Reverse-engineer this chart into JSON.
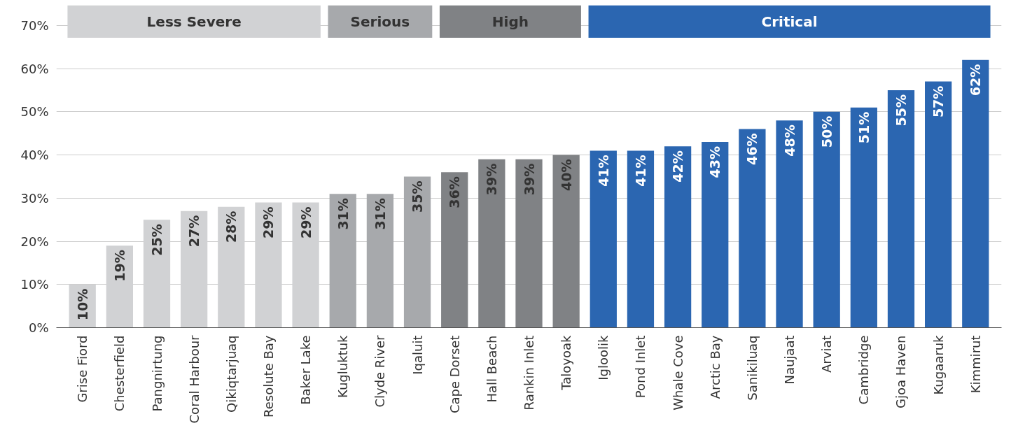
{
  "chart_data": {
    "type": "bar",
    "categories": [
      "Grise Fiord",
      "Chesterfield",
      "Pangnirtung",
      "Coral Harbour",
      "Qikiqtarjuaq",
      "Resolute Bay",
      "Baker Lake",
      "Kugluktuk",
      "Clyde River",
      "Iqaluit",
      "Cape Dorset",
      "Hall Beach",
      "Rankin Inlet",
      "Taloyoak",
      "Igloolik",
      "Pond Inlet",
      "Whale Cove",
      "Arctic Bay",
      "Sanikiluaq",
      "Naujaat",
      "Arviat",
      "Cambridge",
      "Gjoa Haven",
      "Kugaaruk",
      "Kimmirut"
    ],
    "series": [
      {
        "name": "Less Severe",
        "color": "#d1d2d4",
        "values": [
          10,
          19,
          25,
          27,
          28,
          29,
          29,
          null,
          null,
          null,
          null,
          null,
          null,
          null,
          null,
          null,
          null,
          null,
          null,
          null,
          null,
          null,
          null,
          null,
          null
        ],
        "value_labels": [
          "10%",
          "19%",
          "25%",
          "27%",
          "28%",
          "29%",
          "29%",
          null,
          null,
          null,
          null,
          null,
          null,
          null,
          null,
          null,
          null,
          null,
          null,
          null,
          null,
          null,
          null,
          null,
          null
        ]
      },
      {
        "name": "Serious",
        "color": "#a7a9ac",
        "values": [
          null,
          null,
          null,
          null,
          null,
          null,
          null,
          31,
          31,
          35,
          null,
          null,
          null,
          null,
          null,
          null,
          null,
          null,
          null,
          null,
          null,
          null,
          null,
          null,
          null
        ],
        "value_labels": [
          null,
          null,
          null,
          null,
          null,
          null,
          null,
          "31%",
          "31%",
          "35%",
          null,
          null,
          null,
          null,
          null,
          null,
          null,
          null,
          null,
          null,
          null,
          null,
          null,
          null,
          null
        ]
      },
      {
        "name": "High",
        "color": "#808285",
        "values": [
          null,
          null,
          null,
          null,
          null,
          null,
          null,
          null,
          null,
          null,
          36,
          39,
          39,
          40,
          null,
          null,
          null,
          null,
          null,
          null,
          null,
          null,
          null,
          null,
          null
        ],
        "value_labels": [
          null,
          null,
          null,
          null,
          null,
          null,
          null,
          null,
          null,
          null,
          "36%",
          "39%",
          "39%",
          "40%",
          null,
          null,
          null,
          null,
          null,
          null,
          null,
          null,
          null,
          null,
          null
        ]
      },
      {
        "name": "Critical",
        "color": "#2b66b1",
        "values": [
          null,
          null,
          null,
          null,
          null,
          null,
          null,
          null,
          null,
          null,
          null,
          null,
          null,
          null,
          41,
          41,
          42,
          43,
          46,
          48,
          50,
          51,
          55,
          57,
          62
        ],
        "value_labels": [
          null,
          null,
          null,
          null,
          null,
          null,
          null,
          null,
          null,
          null,
          null,
          null,
          null,
          null,
          "41%",
          "41%",
          "42%",
          "43%",
          "46%",
          "48%",
          "50%",
          "51%",
          "55%",
          "57%",
          "62%"
        ]
      }
    ],
    "ylim": [
      0,
      75
    ],
    "yticks": [
      {
        "value": 0,
        "label": "0%"
      },
      {
        "value": 10,
        "label": "10%"
      },
      {
        "value": 20,
        "label": "20%"
      },
      {
        "value": 30,
        "label": "30%"
      },
      {
        "value": 40,
        "label": "40%"
      },
      {
        "value": 50,
        "label": "50%"
      },
      {
        "value": 60,
        "label": "60%"
      },
      {
        "value": 70,
        "label": "70%"
      }
    ],
    "grid": "y",
    "legend": "top"
  }
}
